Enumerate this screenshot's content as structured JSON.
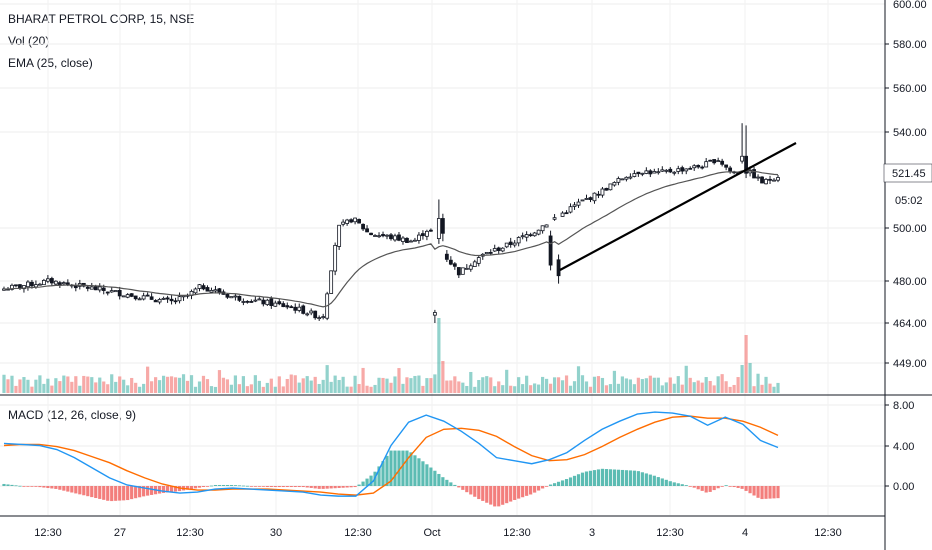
{
  "legend": {
    "symbol": "BHARAT PETROL CORP, 15, NSE",
    "volume": "Vol (20)",
    "ema": "EMA (25, close)",
    "macd": "MACD (12, 26, close, 9)"
  },
  "current_price_label": "521.45",
  "countdown_label": "05:02",
  "colors": {
    "up": "#26a69a",
    "down": "#ef5350",
    "vol_up": "#26a69a",
    "vol_down": "#ef5350",
    "ema": "#555555",
    "macd_line": "#2196f3",
    "signal_line": "#ff6d00",
    "trendline": "#000000"
  },
  "chart_data": [
    {
      "type": "candlestick",
      "title": "BHARAT PETROL CORP, 15, NSE",
      "y_ticks": [
        "600.00",
        "580.00",
        "560.00",
        "540.00",
        "521.45",
        "500.00",
        "480.00",
        "464.00",
        "449.00"
      ],
      "ylim": [
        449,
        600
      ],
      "x_ticks": [
        "12:30",
        "27",
        "12:30",
        "30",
        "12:30",
        "Oct",
        "12:30",
        "3",
        "12:30",
        "4",
        "12:30"
      ],
      "ema_period": 25,
      "trendline": {
        "from": [
          0.63,
          482
        ],
        "to": [
          0.88,
          534
        ]
      },
      "ohlc_approx": [
        [
          476,
          478,
          475,
          477
        ],
        [
          477,
          479,
          476,
          478
        ],
        [
          478,
          480,
          477,
          479
        ],
        [
          479,
          481,
          478,
          480
        ],
        [
          480,
          481,
          478,
          479
        ],
        [
          479,
          480,
          477,
          478
        ],
        [
          478,
          479,
          476,
          477
        ],
        [
          477,
          478,
          475,
          476
        ],
        [
          476,
          477,
          474,
          475
        ],
        [
          475,
          476,
          473,
          474
        ],
        [
          474,
          475,
          472,
          473
        ],
        [
          473,
          474,
          471,
          472
        ],
        [
          472,
          476,
          470,
          474
        ],
        [
          474,
          479,
          473,
          478
        ],
        [
          478,
          479,
          475,
          476
        ],
        [
          476,
          477,
          473,
          474
        ],
        [
          474,
          475,
          472,
          473
        ],
        [
          473,
          474,
          471,
          472
        ],
        [
          472,
          473,
          470,
          471
        ],
        [
          471,
          472,
          469,
          470
        ],
        [
          470,
          471,
          466,
          468
        ],
        [
          468,
          469,
          465,
          466
        ],
        [
          466,
          502,
          465,
          500
        ],
        [
          500,
          512,
          498,
          504
        ],
        [
          504,
          505,
          497,
          498
        ],
        [
          498,
          499,
          496,
          497
        ],
        [
          497,
          498,
          495,
          496
        ],
        [
          496,
          497,
          494,
          495
        ],
        [
          495,
          502,
          494,
          500
        ],
        [
          500,
          501,
          487,
          490
        ],
        [
          490,
          492,
          479,
          483
        ],
        [
          483,
          490,
          482,
          488
        ],
        [
          488,
          492,
          486,
          491
        ],
        [
          491,
          494,
          489,
          493
        ],
        [
          493,
          497,
          492,
          496
        ],
        [
          496,
          500,
          495,
          499
        ],
        [
          499,
          504,
          498,
          503
        ],
        [
          503,
          508,
          502,
          507
        ],
        [
          507,
          512,
          506,
          511
        ],
        [
          511,
          515,
          510,
          514
        ],
        [
          514,
          519,
          513,
          518
        ],
        [
          518,
          524,
          517,
          522
        ],
        [
          522,
          526,
          521,
          524
        ],
        [
          524,
          526,
          522,
          523
        ],
        [
          523,
          525,
          521,
          524
        ],
        [
          524,
          526,
          523,
          525
        ],
        [
          525,
          527,
          523,
          526
        ],
        [
          526,
          531,
          525,
          529
        ],
        [
          529,
          543,
          528,
          523
        ],
        [
          523,
          526,
          521,
          524
        ],
        [
          524,
          525,
          518,
          519
        ],
        [
          519,
          524,
          518,
          522
        ]
      ]
    },
    {
      "type": "bar",
      "title": "Vol (20)",
      "note": "volume histogram, relative heights only"
    },
    {
      "type": "line",
      "title": "MACD (12, 26, close, 9)",
      "y_ticks": [
        "8.00",
        "4.00",
        "0.00"
      ],
      "ylim": [
        -2.5,
        8.5
      ],
      "series": [
        {
          "name": "MACD",
          "values": [
            4.2,
            4.1,
            4.0,
            3.6,
            2.8,
            1.8,
            0.8,
            0.1,
            -0.2,
            -0.5,
            -0.7,
            -0.6,
            -0.3,
            -0.2,
            -0.3,
            -0.4,
            -0.5,
            -0.6,
            -0.9,
            -1.0,
            -1.0,
            0.5,
            4.0,
            6.3,
            7.0,
            6.4,
            5.4,
            4.2,
            2.8,
            2.5,
            2.2,
            2.6,
            3.3,
            4.5,
            5.6,
            6.4,
            7.1,
            7.3,
            7.2,
            6.9,
            6.0,
            6.8,
            6.1,
            4.5,
            3.8
          ]
        },
        {
          "name": "Signal",
          "values": [
            4.0,
            4.1,
            4.1,
            3.9,
            3.5,
            2.9,
            2.3,
            1.5,
            0.8,
            0.2,
            -0.2,
            -0.4,
            -0.4,
            -0.3,
            -0.3,
            -0.3,
            -0.4,
            -0.5,
            -0.6,
            -0.8,
            -0.9,
            -0.7,
            0.5,
            2.8,
            4.8,
            5.6,
            5.7,
            5.5,
            4.9,
            3.9,
            3.0,
            2.5,
            2.6,
            3.1,
            3.9,
            4.8,
            5.6,
            6.3,
            6.8,
            6.9,
            6.7,
            6.7,
            6.4,
            5.8,
            5.0
          ]
        }
      ]
    }
  ]
}
